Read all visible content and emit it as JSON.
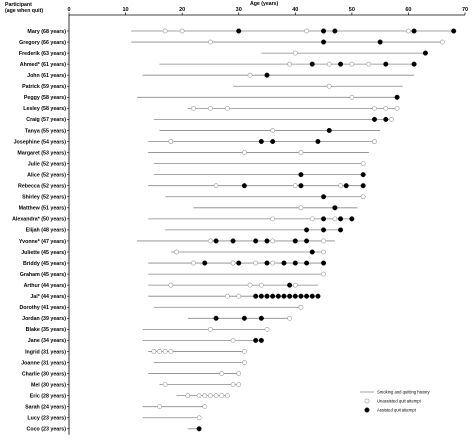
{
  "chart_data": {
    "type": "scatter",
    "xlabel": "Age (years)",
    "ylabel_line1": "Participant",
    "ylabel_line2": "(age when quit)",
    "xlim": [
      0,
      70
    ],
    "x_ticks": [
      "0",
      "10",
      "20",
      "30",
      "40",
      "50",
      "60",
      "70"
    ],
    "legend": {
      "line": "Smoking and quitting history",
      "unassisted": "Unassisted quit attempt",
      "assisted": "Assisted quit attempt"
    },
    "participants": [
      {
        "name": "Mary (68 years)",
        "start": 11,
        "end": 68,
        "unassisted": [
          17,
          20,
          42,
          45,
          60
        ],
        "assisted": [
          30,
          45,
          47,
          61,
          68
        ]
      },
      {
        "name": "Gregory (66 years)",
        "start": 11,
        "end": 66,
        "unassisted": [
          25,
          66
        ],
        "assisted": [
          45,
          55
        ]
      },
      {
        "name": "Frederik (63 years)",
        "start": 34,
        "end": 63,
        "unassisted": [
          40
        ],
        "assisted": [
          63
        ]
      },
      {
        "name": "Ahmed* (61 years)",
        "start": 16,
        "end": 61,
        "unassisted": [
          39,
          46,
          50,
          53
        ],
        "assisted": [
          43,
          48,
          56,
          61
        ]
      },
      {
        "name": "John (61 years)",
        "start": 13,
        "end": 61,
        "unassisted": [
          32
        ],
        "assisted": [
          35
        ]
      },
      {
        "name": "Patrick (59 years)",
        "start": 29,
        "end": 59,
        "unassisted": [
          46
        ],
        "assisted": []
      },
      {
        "name": "Peggy (58 years)",
        "start": 12,
        "end": 58,
        "unassisted": [
          50
        ],
        "assisted": [
          58
        ]
      },
      {
        "name": "Lesley (58 years)",
        "start": 21,
        "end": 58,
        "unassisted": [
          22,
          25,
          28,
          54,
          56,
          58
        ],
        "assisted": []
      },
      {
        "name": "Craig (57 years)",
        "start": 15,
        "end": 57,
        "unassisted": [
          57
        ],
        "assisted": [
          54,
          56
        ]
      },
      {
        "name": "Tanya (55 years)",
        "start": 16,
        "end": 55,
        "unassisted": [
          36
        ],
        "assisted": [
          46
        ]
      },
      {
        "name": "Josephine (54 years)",
        "start": 14,
        "end": 54,
        "unassisted": [
          18,
          54
        ],
        "assisted": [
          34,
          36,
          44
        ]
      },
      {
        "name": "Margaret (53 years)",
        "start": 14,
        "end": 53,
        "unassisted": [
          31,
          41
        ],
        "assisted": []
      },
      {
        "name": "Julie (52 years)",
        "start": 15,
        "end": 52,
        "unassisted": [
          52
        ],
        "assisted": []
      },
      {
        "name": "Alice (52 years)",
        "start": 15,
        "end": 52,
        "unassisted": [],
        "assisted": [
          41,
          52
        ]
      },
      {
        "name": "Rebecca (52 years)",
        "start": 14,
        "end": 52,
        "unassisted": [
          26,
          40,
          48
        ],
        "assisted": [
          31,
          41,
          49,
          52
        ]
      },
      {
        "name": "Shirley (52 years)",
        "start": 17,
        "end": 52,
        "unassisted": [
          52
        ],
        "assisted": [
          45
        ]
      },
      {
        "name": "Matthew (51 years)",
        "start": 22,
        "end": 51,
        "unassisted": [
          41
        ],
        "assisted": [
          47
        ]
      },
      {
        "name": "Alexandra* (50 years)",
        "start": 14,
        "end": 50,
        "unassisted": [
          36,
          43,
          47
        ],
        "assisted": [
          45,
          48,
          50
        ]
      },
      {
        "name": "Elijah (48 years)",
        "start": 17,
        "end": 48,
        "unassisted": [],
        "assisted": [
          42,
          45,
          48
        ]
      },
      {
        "name": "Yvonne* (47 years)",
        "start": 12,
        "end": 47,
        "unassisted": [
          25,
          36,
          45
        ],
        "assisted": [
          26,
          29,
          33,
          35,
          40,
          42
        ]
      },
      {
        "name": "Juliette (45 years)",
        "start": 18,
        "end": 45,
        "unassisted": [
          19,
          45
        ],
        "assisted": [
          43
        ]
      },
      {
        "name": "Briddy (45 years)",
        "start": 14,
        "end": 45,
        "unassisted": [
          22,
          29,
          33,
          36
        ],
        "assisted": [
          24,
          30,
          35,
          38,
          40,
          42,
          45
        ]
      },
      {
        "name": "Graham (45 years)",
        "start": 14,
        "end": 45,
        "unassisted": [
          45
        ],
        "assisted": []
      },
      {
        "name": "Arthur (44 years)",
        "start": 14,
        "end": 44,
        "unassisted": [
          18,
          32,
          34,
          40
        ],
        "assisted": [
          39
        ]
      },
      {
        "name": "Jai* (44 years)",
        "start": 14,
        "end": 44,
        "unassisted": [
          28,
          30
        ],
        "assisted": [
          33,
          34,
          35,
          36,
          37,
          38,
          39,
          40,
          41,
          42,
          43,
          44
        ]
      },
      {
        "name": "Dorothy (41 years)",
        "start": 15,
        "end": 41,
        "unassisted": [
          41
        ],
        "assisted": []
      },
      {
        "name": "Jordan (39 years)",
        "start": 21,
        "end": 39,
        "unassisted": [
          39
        ],
        "assisted": [
          26,
          31,
          34
        ]
      },
      {
        "name": "Blake (35 years)",
        "start": 13,
        "end": 35,
        "unassisted": [
          25,
          35
        ],
        "assisted": []
      },
      {
        "name": "Jane (34 years)",
        "start": 13,
        "end": 34,
        "unassisted": [
          29
        ],
        "assisted": [
          33,
          34
        ]
      },
      {
        "name": "Ingrid (31 years)",
        "start": 14,
        "end": 31,
        "unassisted": [
          15,
          16,
          17,
          18,
          31
        ],
        "assisted": []
      },
      {
        "name": "Joanne (31 years)",
        "start": 15,
        "end": 31,
        "unassisted": [
          31
        ],
        "assisted": []
      },
      {
        "name": "Charlie (30 years)",
        "start": 14,
        "end": 30,
        "unassisted": [
          27,
          30
        ],
        "assisted": []
      },
      {
        "name": "Mel (30 years)",
        "start": 16,
        "end": 30,
        "unassisted": [
          17,
          29,
          30
        ],
        "assisted": []
      },
      {
        "name": "Eric (28 years)",
        "start": 19,
        "end": 28,
        "unassisted": [
          21,
          23,
          24,
          25,
          26,
          27,
          28
        ],
        "assisted": []
      },
      {
        "name": "Sarah (24 years)",
        "start": 13,
        "end": 24,
        "unassisted": [
          16,
          24
        ],
        "assisted": []
      },
      {
        "name": "Lucy (23 years)",
        "start": 13,
        "end": 23,
        "unassisted": [
          23
        ],
        "assisted": []
      },
      {
        "name": "Coco (23 years)",
        "start": 21,
        "end": 23,
        "unassisted": [],
        "assisted": [
          23
        ]
      }
    ]
  }
}
